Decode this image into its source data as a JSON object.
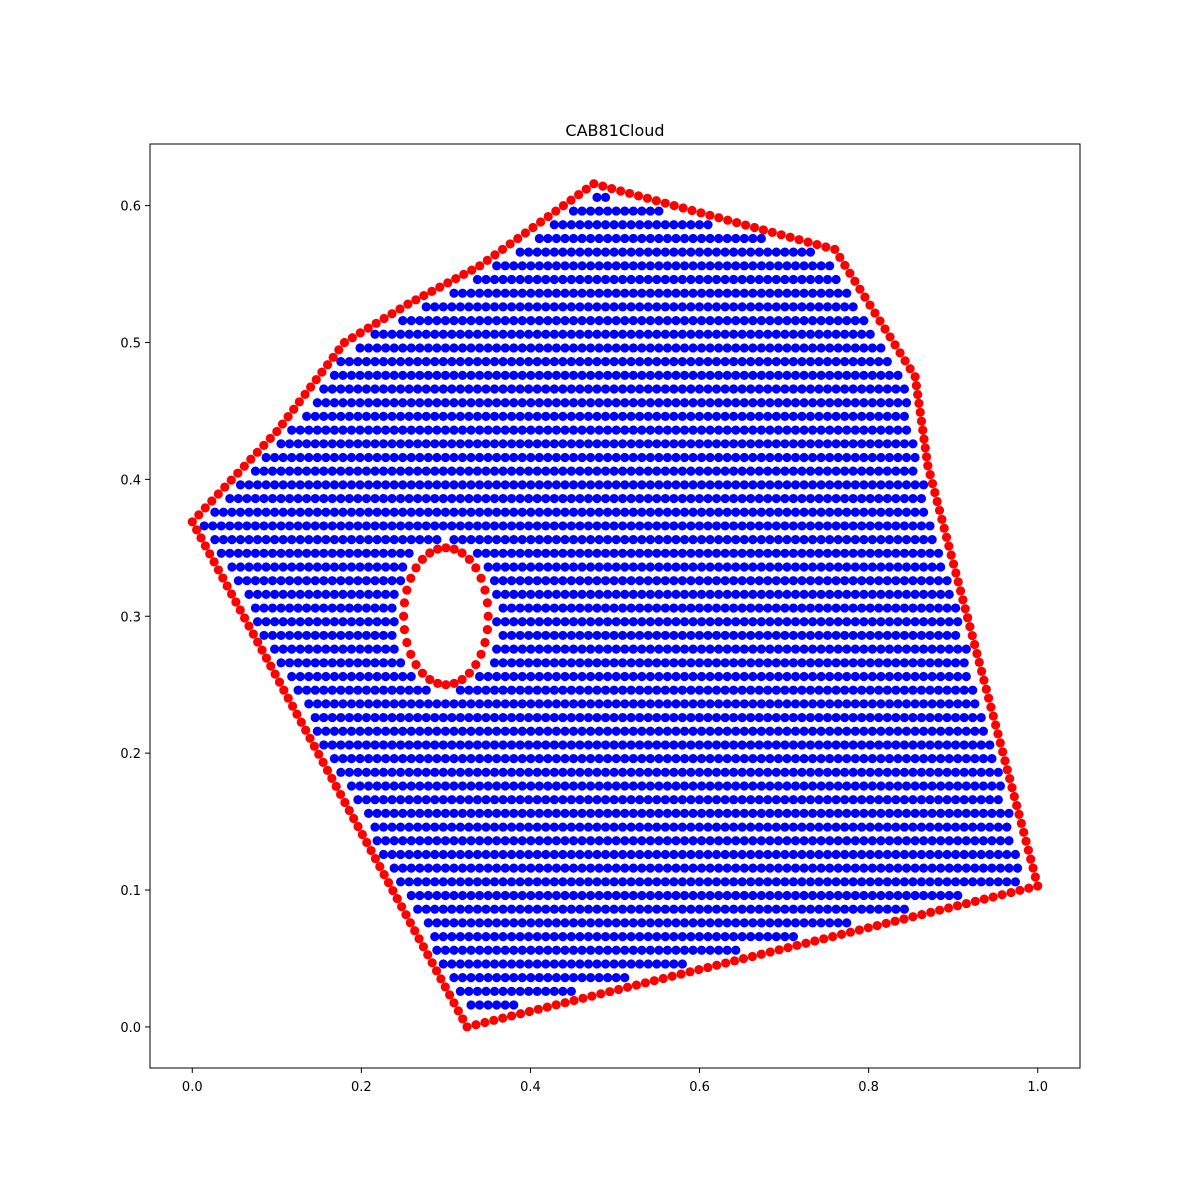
{
  "chart_data": {
    "type": "scatter",
    "title": "CAB81Cloud",
    "xlabel": "",
    "ylabel": "",
    "xlim": [
      -0.05,
      1.05
    ],
    "ylim": [
      -0.03,
      0.645
    ],
    "x_ticks": [
      "0.0",
      "0.2",
      "0.4",
      "0.6",
      "0.8",
      "1.0"
    ],
    "y_ticks": [
      "0.0",
      "0.1",
      "0.2",
      "0.3",
      "0.4",
      "0.5",
      "0.6"
    ],
    "grid": false,
    "legend": "none",
    "series": [
      {
        "role": "boundary",
        "color": "#ff0000",
        "outer_vertices": [
          [
            0.0,
            0.369
          ],
          [
            0.1,
            0.435
          ],
          [
            0.18,
            0.5
          ],
          [
            0.255,
            0.528
          ],
          [
            0.34,
            0.556
          ],
          [
            0.475,
            0.616
          ],
          [
            0.76,
            0.568
          ],
          [
            0.855,
            0.475
          ],
          [
            0.87,
            0.41
          ],
          [
            1.0,
            0.103
          ],
          [
            0.325,
            0.0
          ]
        ],
        "hole": {
          "center": [
            0.3,
            0.3
          ],
          "radius_x": 0.05,
          "radius_y": 0.05
        }
      },
      {
        "role": "interior",
        "color": "#0000ff",
        "row_spacing": 0.01,
        "col_spacing": 0.0101
      }
    ]
  }
}
